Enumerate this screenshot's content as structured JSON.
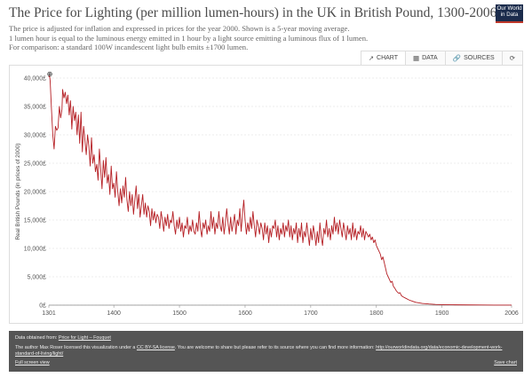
{
  "header": {
    "title": "The Price for Lighting (per million lumen-hours) in the UK in British Pound, 1300-2006",
    "subtitle_lines": [
      "The price is adjusted for inflation and expressed in prices for the year 2000. Shown is a 5-year moving average.",
      "1 lumen hour is equal to the luminous energy emitted in 1 hour by a light source emitting a luminous flux of 1 lumen.",
      "For comparison: a standard 100W incandescent light bulb emits ±1700 lumen."
    ]
  },
  "logo": {
    "line1": "Our World",
    "line2": "in Data"
  },
  "tabs": [
    {
      "label": "CHART",
      "icon": "chart-icon",
      "glyph": "↗"
    },
    {
      "label": "DATA",
      "icon": "table-icon",
      "glyph": "▦"
    },
    {
      "label": "SOURCES",
      "icon": "link-icon",
      "glyph": "🔗"
    },
    {
      "label": "",
      "icon": "refresh-icon",
      "glyph": "⟳"
    }
  ],
  "colors": {
    "line": "#b51f24",
    "grid": "#dddddd",
    "footer_bg": "#555555"
  },
  "chart_data": {
    "type": "line",
    "title": "The Price for Lighting (per million lumen-hours) in the UK in British Pound, 1300-2006",
    "xlabel": "",
    "ylabel": "Real British Pounds (in prices of 2000)",
    "xlim": [
      1301,
      2006
    ],
    "ylim": [
      0,
      40000
    ],
    "x_ticks": [
      "1301",
      "1400",
      "1500",
      "1600",
      "1700",
      "1800",
      "1900",
      "2006"
    ],
    "y_ticks": [
      "0£",
      "5,000£",
      "10,000£",
      "15,000£",
      "20,000£",
      "25,000£",
      "30,000£",
      "35,000£",
      "40,000£"
    ],
    "grid": true,
    "legend": "none",
    "series": [
      {
        "name": "",
        "points": [
          [
            1301,
            40200
          ],
          [
            1302,
            40500
          ],
          [
            1303,
            39500
          ],
          [
            1305,
            34500
          ],
          [
            1307,
            30000
          ],
          [
            1309,
            27500
          ],
          [
            1311,
            31500
          ],
          [
            1313,
            30800
          ],
          [
            1315,
            31200
          ],
          [
            1317,
            35000
          ],
          [
            1319,
            33000
          ],
          [
            1321,
            34500
          ],
          [
            1322,
            38000
          ],
          [
            1324,
            36500
          ],
          [
            1326,
            37500
          ],
          [
            1328,
            35500
          ],
          [
            1330,
            37000
          ],
          [
            1332,
            33500
          ],
          [
            1334,
            36000
          ],
          [
            1336,
            31000
          ],
          [
            1338,
            35000
          ],
          [
            1340,
            32500
          ],
          [
            1342,
            34000
          ],
          [
            1344,
            30000
          ],
          [
            1346,
            33500
          ],
          [
            1348,
            28500
          ],
          [
            1350,
            34000
          ],
          [
            1352,
            27000
          ],
          [
            1354,
            31500
          ],
          [
            1356,
            29000
          ],
          [
            1358,
            26500
          ],
          [
            1360,
            30000
          ],
          [
            1362,
            28000
          ],
          [
            1364,
            24500
          ],
          [
            1366,
            29500
          ],
          [
            1368,
            25000
          ],
          [
            1370,
            26500
          ],
          [
            1372,
            23500
          ],
          [
            1374,
            24800
          ],
          [
            1376,
            22000
          ],
          [
            1378,
            27500
          ],
          [
            1380,
            24000
          ],
          [
            1382,
            20500
          ],
          [
            1384,
            25500
          ],
          [
            1386,
            22500
          ],
          [
            1388,
            26000
          ],
          [
            1390,
            21500
          ],
          [
            1392,
            23000
          ],
          [
            1394,
            19500
          ],
          [
            1396,
            24500
          ],
          [
            1398,
            20500
          ],
          [
            1400,
            21500
          ],
          [
            1402,
            19000
          ],
          [
            1404,
            23500
          ],
          [
            1406,
            20000
          ],
          [
            1408,
            17500
          ],
          [
            1410,
            20500
          ],
          [
            1412,
            18000
          ],
          [
            1414,
            21000
          ],
          [
            1416,
            19000
          ],
          [
            1418,
            22500
          ],
          [
            1420,
            18500
          ],
          [
            1422,
            16500
          ],
          [
            1424,
            20000
          ],
          [
            1426,
            17500
          ],
          [
            1428,
            19500
          ],
          [
            1430,
            16000
          ],
          [
            1432,
            18500
          ],
          [
            1434,
            21000
          ],
          [
            1436,
            17000
          ],
          [
            1438,
            19500
          ],
          [
            1440,
            15500
          ],
          [
            1442,
            17500
          ],
          [
            1444,
            19500
          ],
          [
            1446,
            16000
          ],
          [
            1448,
            18000
          ],
          [
            1450,
            15500
          ],
          [
            1452,
            17500
          ],
          [
            1454,
            16500
          ],
          [
            1456,
            14000
          ],
          [
            1458,
            17000
          ],
          [
            1460,
            15000
          ],
          [
            1462,
            16500
          ],
          [
            1464,
            14500
          ],
          [
            1466,
            16000
          ],
          [
            1468,
            15500
          ],
          [
            1470,
            13500
          ],
          [
            1472,
            16500
          ],
          [
            1474,
            15000
          ],
          [
            1476,
            13000
          ],
          [
            1478,
            15500
          ],
          [
            1480,
            14000
          ],
          [
            1482,
            16000
          ],
          [
            1484,
            13500
          ],
          [
            1486,
            15000
          ],
          [
            1488,
            14500
          ],
          [
            1490,
            16500
          ],
          [
            1492,
            14000
          ],
          [
            1494,
            12500
          ],
          [
            1496,
            15000
          ],
          [
            1498,
            13500
          ],
          [
            1500,
            15500
          ],
          [
            1502,
            13000
          ],
          [
            1504,
            14500
          ],
          [
            1506,
            12000
          ],
          [
            1508,
            14000
          ],
          [
            1510,
            13500
          ],
          [
            1512,
            15500
          ],
          [
            1514,
            12500
          ],
          [
            1516,
            14000
          ],
          [
            1518,
            13000
          ],
          [
            1520,
            15000
          ],
          [
            1522,
            13000
          ],
          [
            1524,
            12500
          ],
          [
            1526,
            14500
          ],
          [
            1528,
            13000
          ],
          [
            1530,
            16500
          ],
          [
            1532,
            13500
          ],
          [
            1534,
            12000
          ],
          [
            1536,
            14500
          ],
          [
            1538,
            13500
          ],
          [
            1540,
            15000
          ],
          [
            1542,
            12500
          ],
          [
            1544,
            14000
          ],
          [
            1546,
            13000
          ],
          [
            1548,
            16500
          ],
          [
            1550,
            13500
          ],
          [
            1552,
            15500
          ],
          [
            1554,
            12500
          ],
          [
            1556,
            14500
          ],
          [
            1558,
            13500
          ],
          [
            1560,
            16500
          ],
          [
            1562,
            14000
          ],
          [
            1564,
            13000
          ],
          [
            1566,
            15500
          ],
          [
            1568,
            12500
          ],
          [
            1570,
            14500
          ],
          [
            1572,
            17000
          ],
          [
            1574,
            14500
          ],
          [
            1576,
            12500
          ],
          [
            1578,
            15500
          ],
          [
            1580,
            13000
          ],
          [
            1582,
            14500
          ],
          [
            1584,
            16000
          ],
          [
            1586,
            12500
          ],
          [
            1588,
            15000
          ],
          [
            1590,
            14000
          ],
          [
            1592,
            17000
          ],
          [
            1594,
            13000
          ],
          [
            1596,
            16000
          ],
          [
            1598,
            18500
          ],
          [
            1600,
            15000
          ],
          [
            1602,
            12500
          ],
          [
            1604,
            14500
          ],
          [
            1606,
            13000
          ],
          [
            1608,
            15500
          ],
          [
            1610,
            13500
          ],
          [
            1612,
            16500
          ],
          [
            1614,
            14000
          ],
          [
            1616,
            12000
          ],
          [
            1618,
            15000
          ],
          [
            1620,
            14000
          ],
          [
            1622,
            12500
          ],
          [
            1624,
            14500
          ],
          [
            1626,
            13500
          ],
          [
            1628,
            11500
          ],
          [
            1630,
            14500
          ],
          [
            1632,
            12500
          ],
          [
            1634,
            14000
          ],
          [
            1636,
            11000
          ],
          [
            1638,
            13500
          ],
          [
            1640,
            12000
          ],
          [
            1642,
            14000
          ],
          [
            1644,
            13500
          ],
          [
            1646,
            15000
          ],
          [
            1648,
            12000
          ],
          [
            1650,
            14000
          ],
          [
            1652,
            11500
          ],
          [
            1654,
            13500
          ],
          [
            1656,
            12500
          ],
          [
            1658,
            14500
          ],
          [
            1660,
            12000
          ],
          [
            1662,
            14000
          ],
          [
            1664,
            13000
          ],
          [
            1666,
            15000
          ],
          [
            1668,
            12000
          ],
          [
            1670,
            14000
          ],
          [
            1672,
            11500
          ],
          [
            1674,
            13500
          ],
          [
            1676,
            12500
          ],
          [
            1678,
            14500
          ],
          [
            1680,
            11000
          ],
          [
            1682,
            13500
          ],
          [
            1684,
            12000
          ],
          [
            1686,
            14500
          ],
          [
            1688,
            11000
          ],
          [
            1690,
            13000
          ],
          [
            1692,
            12000
          ],
          [
            1694,
            14500
          ],
          [
            1696,
            12500
          ],
          [
            1698,
            10500
          ],
          [
            1700,
            13500
          ],
          [
            1702,
            11500
          ],
          [
            1704,
            14000
          ],
          [
            1706,
            12500
          ],
          [
            1708,
            10500
          ],
          [
            1710,
            13000
          ],
          [
            1712,
            11000
          ],
          [
            1714,
            14500
          ],
          [
            1716,
            12000
          ],
          [
            1718,
            10500
          ],
          [
            1720,
            13500
          ],
          [
            1722,
            12500
          ],
          [
            1724,
            15000
          ],
          [
            1726,
            12000
          ],
          [
            1728,
            13500
          ],
          [
            1730,
            11500
          ],
          [
            1732,
            14000
          ],
          [
            1734,
            12500
          ],
          [
            1736,
            15500
          ],
          [
            1738,
            13000
          ],
          [
            1740,
            14500
          ],
          [
            1742,
            12500
          ],
          [
            1744,
            15000
          ],
          [
            1746,
            13500
          ],
          [
            1748,
            12000
          ],
          [
            1750,
            14500
          ],
          [
            1752,
            13000
          ],
          [
            1754,
            11500
          ],
          [
            1756,
            14000
          ],
          [
            1758,
            12500
          ],
          [
            1760,
            13500
          ],
          [
            1762,
            11500
          ],
          [
            1764,
            14500
          ],
          [
            1766,
            12000
          ],
          [
            1768,
            13500
          ],
          [
            1770,
            11500
          ],
          [
            1772,
            13000
          ],
          [
            1774,
            12500
          ],
          [
            1776,
            14000
          ],
          [
            1778,
            12000
          ],
          [
            1780,
            13500
          ],
          [
            1782,
            11500
          ],
          [
            1784,
            13000
          ],
          [
            1786,
            12500
          ],
          [
            1788,
            12000
          ],
          [
            1790,
            12500
          ],
          [
            1792,
            11500
          ],
          [
            1794,
            12000
          ],
          [
            1796,
            11000
          ],
          [
            1798,
            11500
          ],
          [
            1800,
            10500
          ],
          [
            1802,
            10000
          ],
          [
            1804,
            9500
          ],
          [
            1806,
            9000
          ],
          [
            1808,
            8000
          ],
          [
            1810,
            8500
          ],
          [
            1812,
            7500
          ],
          [
            1814,
            6500
          ],
          [
            1816,
            5500
          ],
          [
            1818,
            5000
          ],
          [
            1820,
            4500
          ],
          [
            1822,
            4000
          ],
          [
            1824,
            4200
          ],
          [
            1826,
            3300
          ],
          [
            1828,
            3000
          ],
          [
            1830,
            2600
          ],
          [
            1832,
            2300
          ],
          [
            1834,
            2100
          ],
          [
            1836,
            2200
          ],
          [
            1838,
            1700
          ],
          [
            1840,
            1500
          ],
          [
            1845,
            1200
          ],
          [
            1850,
            900
          ],
          [
            1855,
            700
          ],
          [
            1860,
            500
          ],
          [
            1870,
            300
          ],
          [
            1880,
            200
          ],
          [
            1890,
            130
          ],
          [
            1900,
            90
          ],
          [
            1920,
            60
          ],
          [
            1940,
            40
          ],
          [
            1960,
            25
          ],
          [
            1980,
            15
          ],
          [
            2006,
            8
          ]
        ]
      }
    ],
    "annotation": "⊕"
  },
  "footer": {
    "source_prefix": "Data obtained from: ",
    "source_link": "Price for Light – Fouquet",
    "license_prefix": "The author Max Roser licensed this visualization under a ",
    "license_link": "CC BY-SA license",
    "license_mid": ". You are welcome to share but please refer to its source where you can find more information: ",
    "license_url": "http://ourworldindata.org/data/economic-development-work-standard-of-living/light/",
    "fullscreen": "Full screen view",
    "save": "Save chart"
  }
}
